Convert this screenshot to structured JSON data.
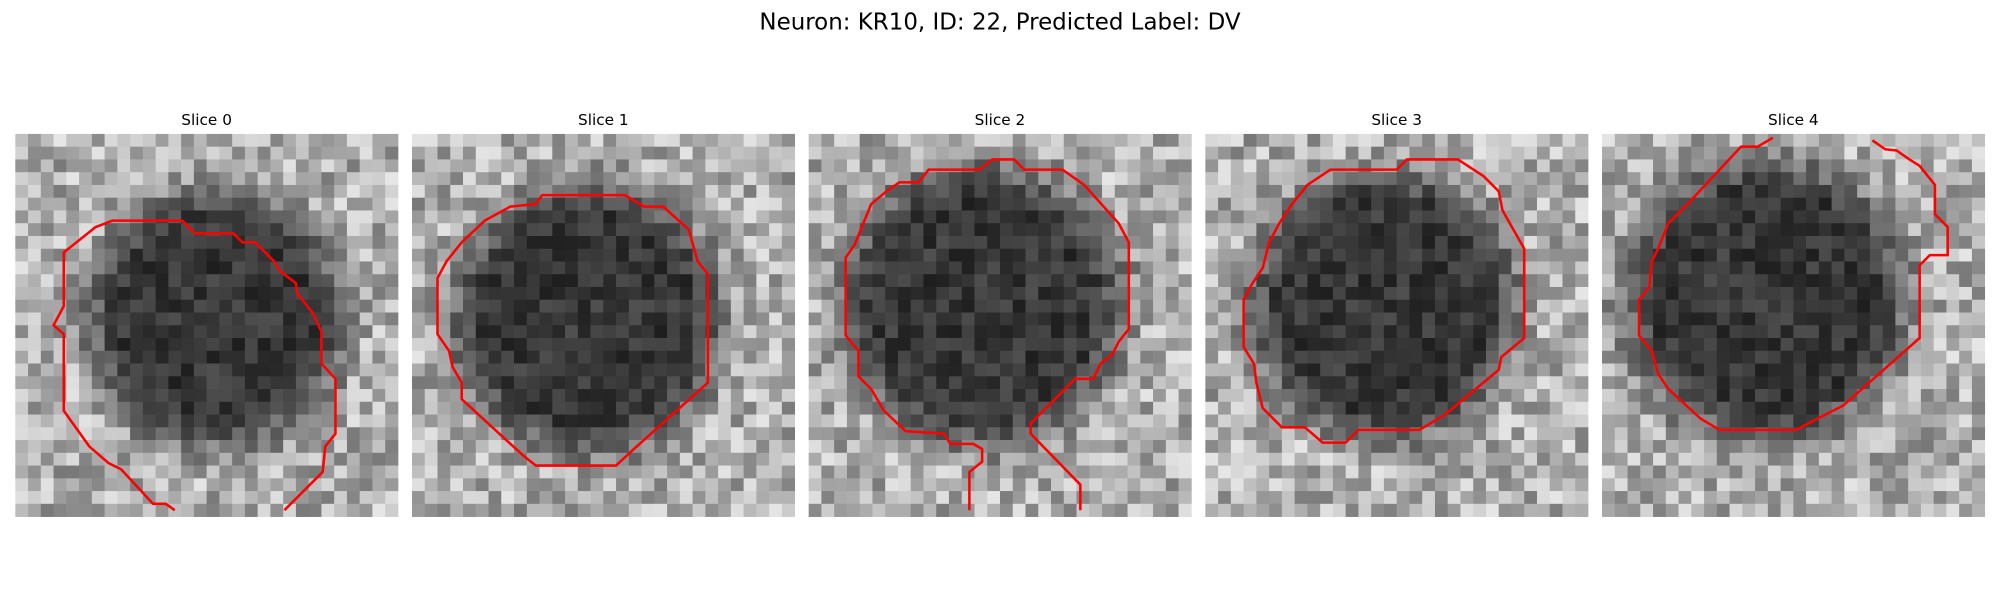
{
  "title": "Neuron: KR10, ID: 22, Predicted Label: DV",
  "panels": [
    {
      "title": "Slice 0"
    },
    {
      "title": "Slice 1"
    },
    {
      "title": "Slice 2"
    },
    {
      "title": "Slice 3"
    },
    {
      "title": "Slice 4"
    }
  ]
}
